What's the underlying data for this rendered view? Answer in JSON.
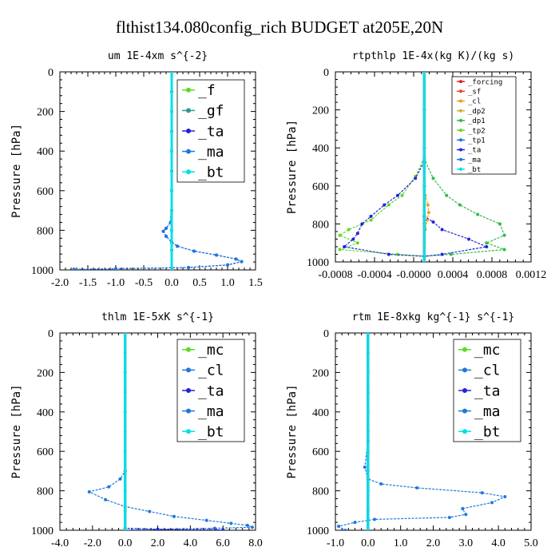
{
  "figure_title": "flthist134.080config_rich  BUDGET at205E,20N",
  "chart_data": [
    {
      "type": "line",
      "title": "um  1E-4xm s^{-2}",
      "ylabel": "Pressure [hPa]",
      "xlim": [
        -2.0,
        1.5
      ],
      "ylim": [
        1000,
        0
      ],
      "xticks": [
        "-2.0",
        "-1.5",
        "-1.0",
        "-0.5",
        "0.0",
        "0.5",
        "1.0",
        "1.5"
      ],
      "yticks": [
        "0",
        "200",
        "400",
        "600",
        "800",
        "1000"
      ],
      "legend_size": "large",
      "series": [
        {
          "name": "_f",
          "color": "#5adc22",
          "points": [
            [
              0,
              0
            ],
            [
              0,
              100
            ],
            [
              0,
              200
            ],
            [
              0,
              300
            ],
            [
              0,
              400
            ],
            [
              0,
              500
            ],
            [
              0,
              600
            ],
            [
              0,
              700
            ],
            [
              0,
              800
            ],
            [
              0,
              900
            ],
            [
              0,
              1000
            ]
          ]
        },
        {
          "name": "_gf",
          "color": "#2f9a8a",
          "points": [
            [
              0,
              0
            ],
            [
              0,
              100
            ],
            [
              0,
              200
            ],
            [
              0,
              300
            ],
            [
              0,
              400
            ],
            [
              0,
              500
            ],
            [
              0,
              600
            ],
            [
              0,
              700
            ],
            [
              0,
              800
            ],
            [
              0,
              900
            ],
            [
              0,
              1000
            ]
          ]
        },
        {
          "name": "_ta",
          "color": "#2222dd",
          "points": [
            [
              0,
              0
            ],
            [
              0,
              600
            ],
            [
              -0.02,
              760
            ],
            [
              -0.1,
              790
            ],
            [
              -0.15,
              805
            ],
            [
              -0.1,
              830
            ],
            [
              0,
              860
            ],
            [
              0.1,
              880
            ],
            [
              0.4,
              905
            ],
            [
              0.8,
              925
            ],
            [
              1.15,
              945
            ],
            [
              1.25,
              958
            ],
            [
              1.0,
              975
            ],
            [
              0.3,
              988
            ],
            [
              -1.0,
              994
            ],
            [
              -1.75,
              997
            ]
          ]
        },
        {
          "name": "_ma",
          "color": "#1e78dc",
          "points": [
            [
              0,
              0
            ],
            [
              0,
              600
            ],
            [
              -0.02,
              760
            ],
            [
              -0.1,
              790
            ],
            [
              -0.15,
              805
            ],
            [
              -0.1,
              830
            ],
            [
              0,
              860
            ],
            [
              0.1,
              880
            ],
            [
              0.4,
              905
            ],
            [
              0.8,
              925
            ],
            [
              1.15,
              945
            ],
            [
              1.25,
              958
            ],
            [
              1.0,
              975
            ],
            [
              0.3,
              988
            ],
            [
              -1.0,
              994
            ],
            [
              -1.75,
              997
            ]
          ]
        },
        {
          "name": "_bt",
          "color": "#00e0e8",
          "points": [
            [
              0,
              0
            ],
            [
              0,
              200
            ],
            [
              0,
              400
            ],
            [
              0,
              600
            ],
            [
              0,
              800
            ],
            [
              0,
              1000
            ]
          ]
        }
      ]
    },
    {
      "type": "line",
      "title": "rtpthlp  1E-4x(kg K)/(kg s)",
      "ylabel": "Pressure [hPa]",
      "xlim": [
        -0.001,
        0.0012
      ],
      "ylim": [
        1000,
        0
      ],
      "xticks": [
        "-0.0008",
        "-0.0004",
        "-0.0000",
        "0.0004",
        "0.0008",
        "0.0012"
      ],
      "yticks": [
        "0",
        "200",
        "400",
        "600",
        "800",
        "1000"
      ],
      "legend_size": "small",
      "series": [
        {
          "name": "_forcing",
          "color": "#e02020",
          "points": [
            [
              0,
              0
            ],
            [
              0,
              200
            ],
            [
              0,
              400
            ],
            [
              0,
              600
            ],
            [
              0,
              800
            ],
            [
              0,
              1000
            ]
          ]
        },
        {
          "name": "_sf",
          "color": "#e8442a",
          "points": [
            [
              0,
              0
            ],
            [
              0,
              200
            ],
            [
              0,
              400
            ],
            [
              0,
              600
            ],
            [
              0,
              800
            ],
            [
              0,
              1000
            ]
          ]
        },
        {
          "name": "_cl",
          "color": "#f09a1a",
          "points": [
            [
              0,
              0
            ],
            [
              0,
              500
            ],
            [
              1e-05,
              650
            ],
            [
              4e-05,
              700
            ],
            [
              5e-05,
              740
            ],
            [
              3e-05,
              780
            ],
            [
              1e-05,
              830
            ],
            [
              0,
              900
            ],
            [
              0,
              1000
            ]
          ]
        },
        {
          "name": "_dp2",
          "color": "#c8b428",
          "points": [
            [
              0,
              0
            ],
            [
              0,
              1000
            ]
          ]
        },
        {
          "name": "_dp1",
          "color": "#2bbd45",
          "points": [
            [
              0,
              0
            ],
            [
              0,
              460
            ],
            [
              0.0001,
              560
            ],
            [
              0.00025,
              650
            ],
            [
              0.0004,
              700
            ],
            [
              0.0006,
              750
            ],
            [
              0.00085,
              800
            ],
            [
              0.0009,
              860
            ],
            [
              0.0007,
              900
            ],
            [
              0.0009,
              935
            ],
            [
              0.0003,
              960
            ],
            [
              0,
              970
            ],
            [
              0,
              1000
            ]
          ]
        },
        {
          "name": "_tp2",
          "color": "#5adc22",
          "points": [
            [
              0,
              0
            ],
            [
              0,
              450
            ],
            [
              -0.0001,
              550
            ],
            [
              -0.00025,
              650
            ],
            [
              -0.0004,
              700
            ],
            [
              -0.0006,
              780
            ],
            [
              -0.00085,
              830
            ],
            [
              -0.00095,
              860
            ],
            [
              -0.00075,
              900
            ],
            [
              -0.00095,
              935
            ],
            [
              -0.0003,
              960
            ],
            [
              0,
              970
            ],
            [
              0,
              1000
            ]
          ]
        },
        {
          "name": "_tp1",
          "color": "#1e78dc",
          "points": [
            [
              0,
              0
            ],
            [
              0,
              1000
            ]
          ]
        },
        {
          "name": "_ta",
          "color": "#2222dd",
          "points": [
            [
              0,
              0
            ],
            [
              0,
              470
            ],
            [
              -0.0001,
              560
            ],
            [
              -0.0003,
              650
            ],
            [
              -0.00045,
              700
            ],
            [
              -0.0006,
              760
            ],
            [
              -0.0007,
              800
            ],
            [
              -0.00075,
              850
            ],
            [
              -0.0008,
              880
            ],
            [
              -0.0009,
              920
            ],
            [
              -0.0004,
              960
            ],
            [
              0,
              970
            ],
            [
              0.0002,
              960
            ],
            [
              0.0007,
              920
            ],
            [
              0.0005,
              880
            ],
            [
              0.0002,
              830
            ],
            [
              0.0001,
              790
            ],
            [
              0,
              760
            ]
          ]
        },
        {
          "name": "_ma",
          "color": "#1e78dc",
          "points": [
            [
              0,
              0
            ],
            [
              0,
              1000
            ]
          ]
        },
        {
          "name": "_bt",
          "color": "#00e0e8",
          "points": [
            [
              0,
              0
            ],
            [
              0,
              200
            ],
            [
              0,
              400
            ],
            [
              0,
              600
            ],
            [
              0,
              800
            ],
            [
              0,
              1000
            ]
          ]
        }
      ]
    },
    {
      "type": "line",
      "title": "thlm  1E-5xK s^{-1}",
      "ylabel": "Pressure [hPa]",
      "xlim": [
        -4.0,
        8.0
      ],
      "ylim": [
        1000,
        0
      ],
      "xticks": [
        "-4.0",
        "-2.0",
        "0.0",
        "2.0",
        "4.0",
        "6.0",
        "8.0"
      ],
      "yticks": [
        "0",
        "200",
        "400",
        "600",
        "800",
        "1000"
      ],
      "legend_size": "large",
      "series": [
        {
          "name": "_mc",
          "color": "#5adc22",
          "points": [
            [
              0,
              0
            ],
            [
              0,
              100
            ],
            [
              0,
              200
            ],
            [
              0,
              300
            ],
            [
              0,
              400
            ],
            [
              0,
              500
            ],
            [
              0,
              600
            ],
            [
              0,
              700
            ],
            [
              0,
              800
            ],
            [
              0,
              900
            ],
            [
              0,
              1000
            ]
          ]
        },
        {
          "name": "_cl",
          "color": "#1e78dc",
          "points": [
            [
              0,
              0
            ],
            [
              0,
              700
            ],
            [
              -0.3,
              740
            ],
            [
              -1.0,
              780
            ],
            [
              -2.2,
              805
            ],
            [
              -1.2,
              845
            ],
            [
              0,
              880
            ],
            [
              1.5,
              905
            ],
            [
              3.0,
              930
            ],
            [
              5.0,
              950
            ],
            [
              6.5,
              965
            ],
            [
              7.5,
              975
            ],
            [
              7.8,
              985
            ],
            [
              5.5,
              990
            ],
            [
              2.0,
              995
            ],
            [
              0,
              1000
            ]
          ]
        },
        {
          "name": "_ta",
          "color": "#2222dd",
          "points": [
            [
              0,
              0
            ],
            [
              0,
              990
            ],
            [
              2,
              995
            ],
            [
              6,
              998
            ]
          ]
        },
        {
          "name": "_ma",
          "color": "#1e78dc",
          "points": [
            [
              0,
              0
            ],
            [
              0,
              1000
            ]
          ]
        },
        {
          "name": "_bt",
          "color": "#00e0e8",
          "points": [
            [
              0,
              0
            ],
            [
              0,
              200
            ],
            [
              0,
              400
            ],
            [
              0,
              600
            ],
            [
              0,
              800
            ],
            [
              0,
              1000
            ]
          ]
        }
      ]
    },
    {
      "type": "line",
      "title": "rtm  1E-8xkg kg^{-1} s^{-1}",
      "ylabel": "Pressure [hPa]",
      "xlim": [
        -1.0,
        5.0
      ],
      "ylim": [
        1000,
        0
      ],
      "xticks": [
        "-1.0",
        "0.0",
        "1.0",
        "2.0",
        "3.0",
        "4.0",
        "5.0"
      ],
      "yticks": [
        "0",
        "200",
        "400",
        "600",
        "800",
        "1000"
      ],
      "legend_size": "large",
      "series": [
        {
          "name": "_mc",
          "color": "#5adc22",
          "points": [
            [
              0,
              0
            ],
            [
              0,
              100
            ],
            [
              0,
              200
            ],
            [
              0,
              300
            ],
            [
              0,
              400
            ],
            [
              0,
              500
            ],
            [
              0,
              600
            ],
            [
              0,
              700
            ],
            [
              0,
              800
            ],
            [
              0,
              900
            ],
            [
              0,
              1000
            ]
          ]
        },
        {
          "name": "_cl",
          "color": "#1e78dc",
          "points": [
            [
              0,
              0
            ],
            [
              0,
              550
            ],
            [
              -0.1,
              680
            ],
            [
              0,
              740
            ],
            [
              0.4,
              765
            ],
            [
              1.5,
              785
            ],
            [
              3.5,
              810
            ],
            [
              4.2,
              830
            ],
            [
              3.8,
              860
            ],
            [
              2.9,
              890
            ],
            [
              3.0,
              920
            ],
            [
              2.5,
              935
            ],
            [
              0.2,
              945
            ],
            [
              -0.4,
              960
            ],
            [
              -0.9,
              980
            ],
            [
              -0.7,
              1000
            ]
          ]
        },
        {
          "name": "_ta",
          "color": "#2222dd",
          "points": [
            [
              0,
              0
            ],
            [
              0,
              1000
            ]
          ]
        },
        {
          "name": "_ma",
          "color": "#1e78dc",
          "points": [
            [
              0,
              0
            ],
            [
              0,
              1000
            ]
          ]
        },
        {
          "name": "_bt",
          "color": "#00e0e8",
          "points": [
            [
              0,
              0
            ],
            [
              0,
              200
            ],
            [
              0,
              400
            ],
            [
              0,
              600
            ],
            [
              0,
              800
            ],
            [
              0,
              1000
            ]
          ]
        }
      ]
    }
  ]
}
